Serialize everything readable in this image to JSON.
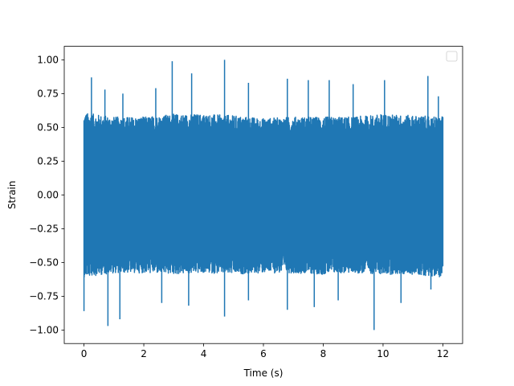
{
  "chart_data": {
    "type": "line",
    "title": "",
    "xlabel": "Time (s)",
    "ylabel": "Strain",
    "xlim": [
      -0.66,
      12.66
    ],
    "ylim": [
      -1.1,
      1.1
    ],
    "xticks": [
      0,
      2,
      4,
      6,
      8,
      10,
      12
    ],
    "xtick_labels": [
      "0",
      "2",
      "4",
      "6",
      "8",
      "10",
      "12"
    ],
    "yticks": [
      -1.0,
      -0.75,
      -0.5,
      -0.25,
      0.0,
      0.25,
      0.5,
      0.75,
      1.0
    ],
    "ytick_labels": [
      "−1.00",
      "−0.75",
      "−0.50",
      "−0.25",
      "0.00",
      "0.25",
      "0.50",
      "0.75",
      "1.00"
    ],
    "grid": false,
    "legend": {
      "placement": "top-right",
      "entries": []
    },
    "series": [
      {
        "color": "#1f77b4",
        "x_range": [
          0,
          12
        ],
        "envelope": {
          "x": [
            0,
            1,
            2,
            3,
            4,
            5,
            6,
            7,
            8,
            9,
            10,
            11,
            12
          ],
          "typical_max": [
            0.58,
            0.55,
            0.55,
            0.57,
            0.57,
            0.56,
            0.54,
            0.55,
            0.55,
            0.55,
            0.57,
            0.56,
            0.55
          ],
          "typical_min": [
            -0.58,
            -0.55,
            -0.55,
            -0.56,
            -0.55,
            -0.56,
            -0.55,
            -0.55,
            -0.56,
            -0.55,
            -0.56,
            -0.56,
            -0.58
          ]
        },
        "peaks": [
          {
            "x": 0.25,
            "y": 0.87
          },
          {
            "x": 0.7,
            "y": 0.78
          },
          {
            "x": 1.3,
            "y": 0.75
          },
          {
            "x": 2.4,
            "y": 0.79
          },
          {
            "x": 2.95,
            "y": 0.99
          },
          {
            "x": 3.6,
            "y": 0.9
          },
          {
            "x": 4.7,
            "y": 1.0
          },
          {
            "x": 5.5,
            "y": 0.83
          },
          {
            "x": 6.8,
            "y": 0.86
          },
          {
            "x": 7.5,
            "y": 0.85
          },
          {
            "x": 8.2,
            "y": 0.85
          },
          {
            "x": 9.0,
            "y": 0.82
          },
          {
            "x": 10.05,
            "y": 0.85
          },
          {
            "x": 11.5,
            "y": 0.88
          },
          {
            "x": 11.85,
            "y": 0.73
          }
        ],
        "troughs": [
          {
            "x": 0.0,
            "y": -0.86
          },
          {
            "x": 0.8,
            "y": -0.97
          },
          {
            "x": 1.2,
            "y": -0.92
          },
          {
            "x": 2.6,
            "y": -0.8
          },
          {
            "x": 3.5,
            "y": -0.82
          },
          {
            "x": 4.7,
            "y": -0.9
          },
          {
            "x": 5.5,
            "y": -0.78
          },
          {
            "x": 6.8,
            "y": -0.85
          },
          {
            "x": 7.7,
            "y": -0.83
          },
          {
            "x": 8.5,
            "y": -0.78
          },
          {
            "x": 9.7,
            "y": -1.0
          },
          {
            "x": 10.6,
            "y": -0.8
          },
          {
            "x": 11.6,
            "y": -0.7
          }
        ]
      }
    ]
  }
}
